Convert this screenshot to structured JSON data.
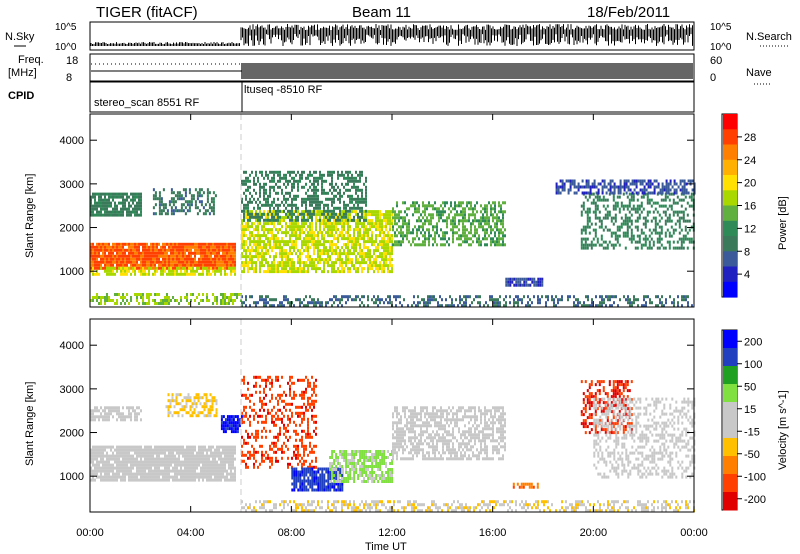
{
  "header": {
    "radar_label": "TIGER (fitACF)",
    "beam_label": "Beam 11",
    "date_label": "18/Feb/2011"
  },
  "status_panels": {
    "nsky_label": "N.Sky",
    "nsearch_label": "N.Search",
    "noise_ticks": [
      "10^5",
      "10^0"
    ],
    "noise_ticks_right": [
      "10^5",
      "10^0"
    ],
    "freq_label": "Freq.",
    "freq_unit": "[MHz]",
    "freq_ticks": [
      "18",
      "8"
    ],
    "nave_label": "Nave",
    "nave_ticks": [
      "60",
      "0"
    ],
    "cpid_label": "CPID",
    "cpid_segments": [
      {
        "name": "stereo_scan 8551 RF",
        "start_hour": 0,
        "end_hour": 6.0
      },
      {
        "name": "ltuseq -8510 RF",
        "start_hour": 6.0,
        "end_hour": 24
      }
    ]
  },
  "colors": {
    "power_scale": [
      "#0000ff",
      "#2020c0",
      "#3a5a9a",
      "#3a7a5a",
      "#2e8b57",
      "#60b040",
      "#a8d800",
      "#ffe000",
      "#ffb000",
      "#ff8000",
      "#ff4000",
      "#ff0000"
    ],
    "velocity_scale": [
      "#0000ff",
      "#2040c0",
      "#20a020",
      "#80e040",
      "#c8c8c8",
      "#c8c8c8",
      "#ffc000",
      "#ff8000",
      "#ff4000",
      "#e00000"
    ]
  },
  "chart_data": [
    {
      "type": "heatmap",
      "name": "power",
      "xlabel": "Time UT",
      "ylabel": "Slant Range [km]",
      "xlim": [
        0,
        24
      ],
      "ylim": [
        180,
        4600
      ],
      "x_tick_labels": [
        "00:00",
        "04:00",
        "08:00",
        "12:00",
        "16:00",
        "20:00",
        "00:00"
      ],
      "x_tick_values": [
        0,
        4,
        8,
        12,
        16,
        20,
        24
      ],
      "y_tick_labels": [
        "1000",
        "2000",
        "3000",
        "4000"
      ],
      "y_tick_values": [
        1000,
        2000,
        3000,
        4000
      ],
      "colorbar_label": "Power [dB]",
      "colorbar_ticks": [
        "28",
        "24",
        "20",
        "16",
        "12",
        "8",
        "4"
      ],
      "colorbar_values": [
        28,
        24,
        20,
        16,
        12,
        8,
        4
      ],
      "colorbar_range": [
        0,
        32
      ],
      "regions": [
        {
          "x0": 0.0,
          "x1": 5.8,
          "y0": 1100,
          "y1": 1650,
          "value": 27,
          "density": 0.95
        },
        {
          "x0": 0.0,
          "x1": 5.8,
          "y0": 900,
          "y1": 1100,
          "value": 18,
          "density": 0.7
        },
        {
          "x0": 0.0,
          "x1": 2.0,
          "y0": 2300,
          "y1": 2800,
          "value": 10,
          "density": 0.8
        },
        {
          "x0": 2.5,
          "x1": 5.0,
          "y0": 2300,
          "y1": 2900,
          "value": 9,
          "density": 0.5
        },
        {
          "x0": 0.0,
          "x1": 6.0,
          "y0": 250,
          "y1": 500,
          "value": 16,
          "density": 0.5
        },
        {
          "x0": 6.0,
          "x1": 12.0,
          "y0": 1000,
          "y1": 2400,
          "value": 18,
          "density": 0.7
        },
        {
          "x0": 6.0,
          "x1": 11.0,
          "y0": 2200,
          "y1": 3300,
          "value": 10,
          "density": 0.5
        },
        {
          "x0": 12.0,
          "x1": 16.5,
          "y0": 1600,
          "y1": 2600,
          "value": 14,
          "density": 0.55
        },
        {
          "x0": 6.0,
          "x1": 24.0,
          "y0": 200,
          "y1": 450,
          "value": 8,
          "density": 0.45
        },
        {
          "x0": 16.5,
          "x1": 18.0,
          "y0": 700,
          "y1": 850,
          "value": 6,
          "density": 0.8
        },
        {
          "x0": 19.5,
          "x1": 24.0,
          "y0": 1500,
          "y1": 2800,
          "value": 11,
          "density": 0.4
        },
        {
          "x0": 18.5,
          "x1": 24.0,
          "y0": 2800,
          "y1": 3100,
          "value": 6,
          "density": 0.6
        }
      ]
    },
    {
      "type": "heatmap",
      "name": "velocity",
      "xlabel": "Time UT",
      "ylabel": "Slant Range [km]",
      "xlim": [
        0,
        24
      ],
      "ylim": [
        180,
        4600
      ],
      "x_tick_labels": [
        "00:00",
        "04:00",
        "08:00",
        "12:00",
        "16:00",
        "20:00",
        "00:00"
      ],
      "x_tick_values": [
        0,
        4,
        8,
        12,
        16,
        20,
        24
      ],
      "y_tick_labels": [
        "1000",
        "2000",
        "3000",
        "4000"
      ],
      "y_tick_values": [
        1000,
        2000,
        3000,
        4000
      ],
      "colorbar_label": "Velocity [m s^-1]",
      "colorbar_ticks": [
        "200",
        "100",
        "50",
        "15",
        "-15",
        "-50",
        "-100",
        "-200"
      ],
      "colorbar_values": [
        200,
        100,
        50,
        15,
        -15,
        -50,
        -100,
        -200
      ],
      "colorbar_range": [
        -250,
        250
      ],
      "regions": [
        {
          "x0": 0.0,
          "x1": 5.8,
          "y0": 900,
          "y1": 1700,
          "value": 0,
          "density": 0.9
        },
        {
          "x0": 0.0,
          "x1": 2.0,
          "y0": 2300,
          "y1": 2600,
          "value": 0,
          "density": 0.7
        },
        {
          "x0": 3.0,
          "x1": 5.0,
          "y0": 2400,
          "y1": 2900,
          "value": -60,
          "density": 0.5
        },
        {
          "x0": 5.2,
          "x1": 6.0,
          "y0": 2000,
          "y1": 2400,
          "value": 220,
          "density": 0.8
        },
        {
          "x0": 6.0,
          "x1": 9.0,
          "y0": 1200,
          "y1": 3300,
          "value": -180,
          "density": 0.35
        },
        {
          "x0": 8.0,
          "x1": 10.0,
          "y0": 700,
          "y1": 1200,
          "value": 180,
          "density": 0.8
        },
        {
          "x0": 9.5,
          "x1": 12.0,
          "y0": 900,
          "y1": 1600,
          "value": 60,
          "density": 0.7
        },
        {
          "x0": 12.0,
          "x1": 16.5,
          "y0": 1400,
          "y1": 2600,
          "value": 0,
          "density": 0.6
        },
        {
          "x0": 6.0,
          "x1": 24.0,
          "y0": 200,
          "y1": 450,
          "value": -40,
          "density": 0.45
        },
        {
          "x0": 16.8,
          "x1": 17.8,
          "y0": 750,
          "y1": 850,
          "value": -130,
          "density": 0.8
        },
        {
          "x0": 19.5,
          "x1": 21.5,
          "y0": 2000,
          "y1": 3200,
          "value": -200,
          "density": 0.45
        },
        {
          "x0": 20.0,
          "x1": 24.0,
          "y0": 1000,
          "y1": 2800,
          "value": 0,
          "density": 0.4
        }
      ]
    }
  ]
}
